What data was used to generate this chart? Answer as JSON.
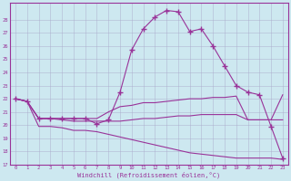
{
  "xlabel": "Windchill (Refroidissement éolien,°C)",
  "x": [
    0,
    1,
    2,
    3,
    4,
    5,
    6,
    7,
    8,
    9,
    10,
    11,
    12,
    13,
    14,
    15,
    16,
    17,
    18,
    19,
    20,
    21,
    22,
    23
  ],
  "line_bottom": [
    22.0,
    21.8,
    19.9,
    19.9,
    19.8,
    19.6,
    19.6,
    19.5,
    19.3,
    19.1,
    18.9,
    18.7,
    18.5,
    18.3,
    18.1,
    17.9,
    17.8,
    17.7,
    17.6,
    17.5,
    17.5,
    17.5,
    17.5,
    17.4
  ],
  "line_mid_low": [
    22.0,
    21.8,
    20.5,
    20.5,
    20.4,
    20.3,
    20.3,
    20.3,
    20.3,
    20.3,
    20.4,
    20.5,
    20.5,
    20.6,
    20.7,
    20.7,
    20.8,
    20.8,
    20.8,
    20.8,
    20.4,
    20.4,
    20.4,
    20.4
  ],
  "line_mid_high": [
    22.0,
    21.8,
    20.5,
    20.5,
    20.5,
    20.5,
    20.5,
    20.5,
    21.0,
    21.4,
    21.5,
    21.7,
    21.7,
    21.8,
    21.9,
    22.0,
    22.0,
    22.1,
    22.1,
    22.2,
    20.4,
    20.4,
    20.4,
    22.3
  ],
  "line_peak": [
    22.0,
    21.8,
    20.5,
    20.5,
    20.5,
    20.5,
    20.5,
    20.1,
    20.4,
    22.5,
    25.7,
    27.3,
    28.2,
    28.7,
    28.6,
    27.1,
    27.3,
    26.0,
    24.5,
    23.0,
    22.5,
    22.3,
    19.9,
    17.5
  ],
  "color": "#993399",
  "bg_color": "#cde8f0",
  "grid_color": "#aaaacc",
  "ylim_min": 17,
  "ylim_max": 29,
  "xlim_min": 0,
  "xlim_max": 23,
  "yticks": [
    17,
    18,
    19,
    20,
    21,
    22,
    23,
    24,
    25,
    26,
    27,
    28
  ],
  "xticks": [
    0,
    1,
    2,
    3,
    4,
    5,
    6,
    7,
    8,
    9,
    10,
    11,
    12,
    13,
    14,
    15,
    16,
    17,
    18,
    19,
    20,
    21,
    22,
    23
  ]
}
